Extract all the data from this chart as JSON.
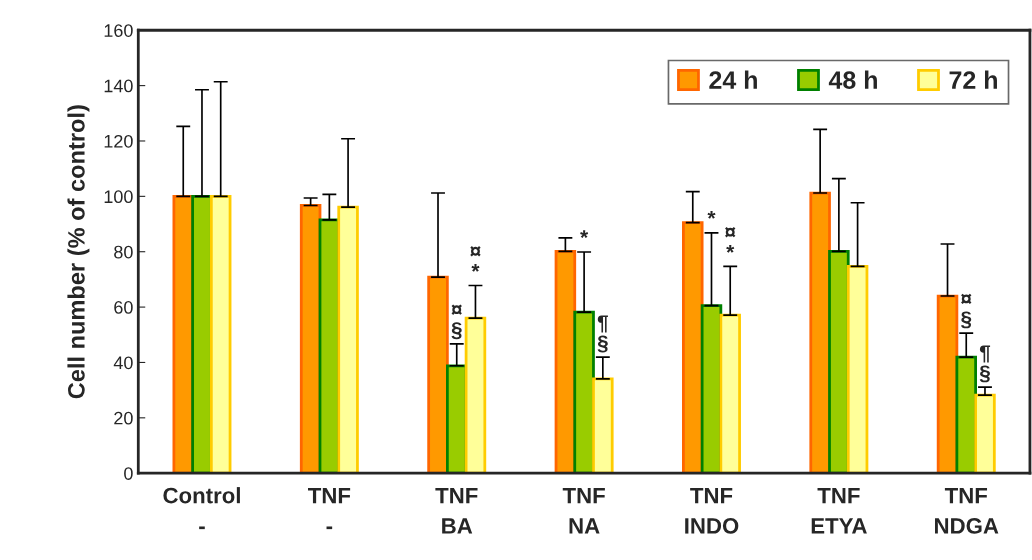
{
  "chart_data": {
    "type": "bar",
    "ylabel": "Cell number (% of control)",
    "categories": [
      "Control\n-",
      "TNF\n-",
      "TNF\nBA",
      "TNF\nNA",
      "TNF\nINDO",
      "TNF\nETYA",
      "TNF\nNDGA"
    ],
    "series": [
      {
        "name": "24 h",
        "color": "#ff9900",
        "values": [
          100,
          96.7,
          70.8,
          80.1,
          90.5,
          101.2,
          64
        ],
        "errors": [
          [
            100,
            125.3
          ],
          [
            96.7,
            99.4
          ],
          [
            70.8,
            101.2
          ],
          [
            80.1,
            85
          ],
          [
            90.5,
            101.7
          ],
          [
            101.2,
            124.2
          ],
          [
            64,
            82.8
          ]
        ]
      },
      {
        "name": "48 h",
        "color": "#99cc00",
        "values": [
          100,
          91.5,
          38.8,
          58.2,
          60.5,
          80.1,
          41.9
        ],
        "errors": [
          [
            100,
            138.5
          ],
          [
            91.5,
            100.7
          ],
          [
            38.8,
            46.7
          ],
          [
            58.2,
            79.9
          ],
          [
            60.5,
            86.8
          ],
          [
            80.1,
            106.4
          ],
          [
            41.9,
            50.6
          ]
        ],
        "value_labels": [
          null,
          null,
          "¤\n§",
          null,
          null,
          null,
          "¤\n§"
        ]
      },
      {
        "name": "72 h",
        "color": "#ffff99",
        "values": [
          100,
          96.1,
          56,
          34.1,
          57.1,
          74.7,
          28.2
        ],
        "errors": [
          [
            100,
            141.4
          ],
          [
            96.1,
            120.8
          ],
          [
            56,
            67.8
          ],
          [
            34.1,
            41.9
          ],
          [
            57.1,
            74.7
          ],
          [
            74.7,
            97.7
          ],
          [
            28.2,
            31.1
          ]
        ],
        "value_labels": [
          null,
          null,
          "¤\n*",
          "¶\n§",
          "¤\n*",
          null,
          "¶\n§"
        ]
      }
    ],
    "annotations": [
      {
        "text": "*",
        "x": "TNF\nNA",
        "y": 81
      },
      {
        "text": "*",
        "x": "TNF\nINDO",
        "y": 88
      }
    ],
    "ylim": [
      0,
      160
    ],
    "yticks": [
      0,
      20,
      40,
      60,
      80,
      100,
      120,
      140,
      160
    ],
    "legend": "top right"
  }
}
